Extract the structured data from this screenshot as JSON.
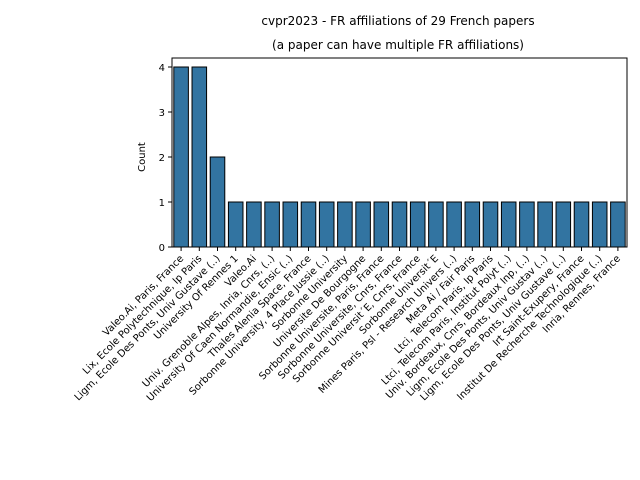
{
  "chart_data": {
    "type": "bar",
    "title": "cvpr2023 - FR affiliations of 29 French papers",
    "subtitle": "(a paper can have multiple FR affiliations)",
    "xlabel": "",
    "ylabel": "Count",
    "ylim": [
      0,
      4.2
    ],
    "yticks": [
      0,
      1,
      2,
      3,
      4
    ],
    "grid": false,
    "bar_color": "#3274a1",
    "categories": [
      "Valeo.Ai, Paris, France",
      "Lix, Ecole Polytechnique, Ip Paris",
      "Ligm, Ecole Des Ponts, Univ Gustave (..)",
      "University Of Rennes 1",
      "Valeo.Ai",
      "Univ. Grenoble Alpes, Inria, Cnrs, (..)",
      "University Of Caen Normandie, Ensic (..)",
      "Thales Alenia Space, France",
      "Sorbonne University, 4 Place Jussie (..)",
      "Sorbonne University",
      "Universite De Bourgogne",
      "Sorbonne Universite, Paris, France",
      "Sorbonne Universite, Cnrs, France",
      "Sorbonne Universit´E, Cnrs, France",
      "Sorbonne Universit´E",
      "Mines Paris, Psl - Research Univers (..)",
      "Meta Ai / Fair Paris",
      "Ltci, Telecom Paris, Ip Paris",
      "Ltci, Telecom Paris, Institut Polyt (..)",
      "Univ. Bordeaux, Cnrs, Bordeaux Inp, (..)",
      "Ligm, Ecole Des Ponts, Univ Gustav (..)",
      "Ligm, Ecole Des Ponts, Univ Gustave (..)",
      "Irt Saint-Exupery, France",
      "Institut De Recherche Technologique (..)",
      "Inria, Rennes, France"
    ],
    "values": [
      4,
      4,
      2,
      1,
      1,
      1,
      1,
      1,
      1,
      1,
      1,
      1,
      1,
      1,
      1,
      1,
      1,
      1,
      1,
      1,
      1,
      1,
      1,
      1,
      1
    ]
  }
}
